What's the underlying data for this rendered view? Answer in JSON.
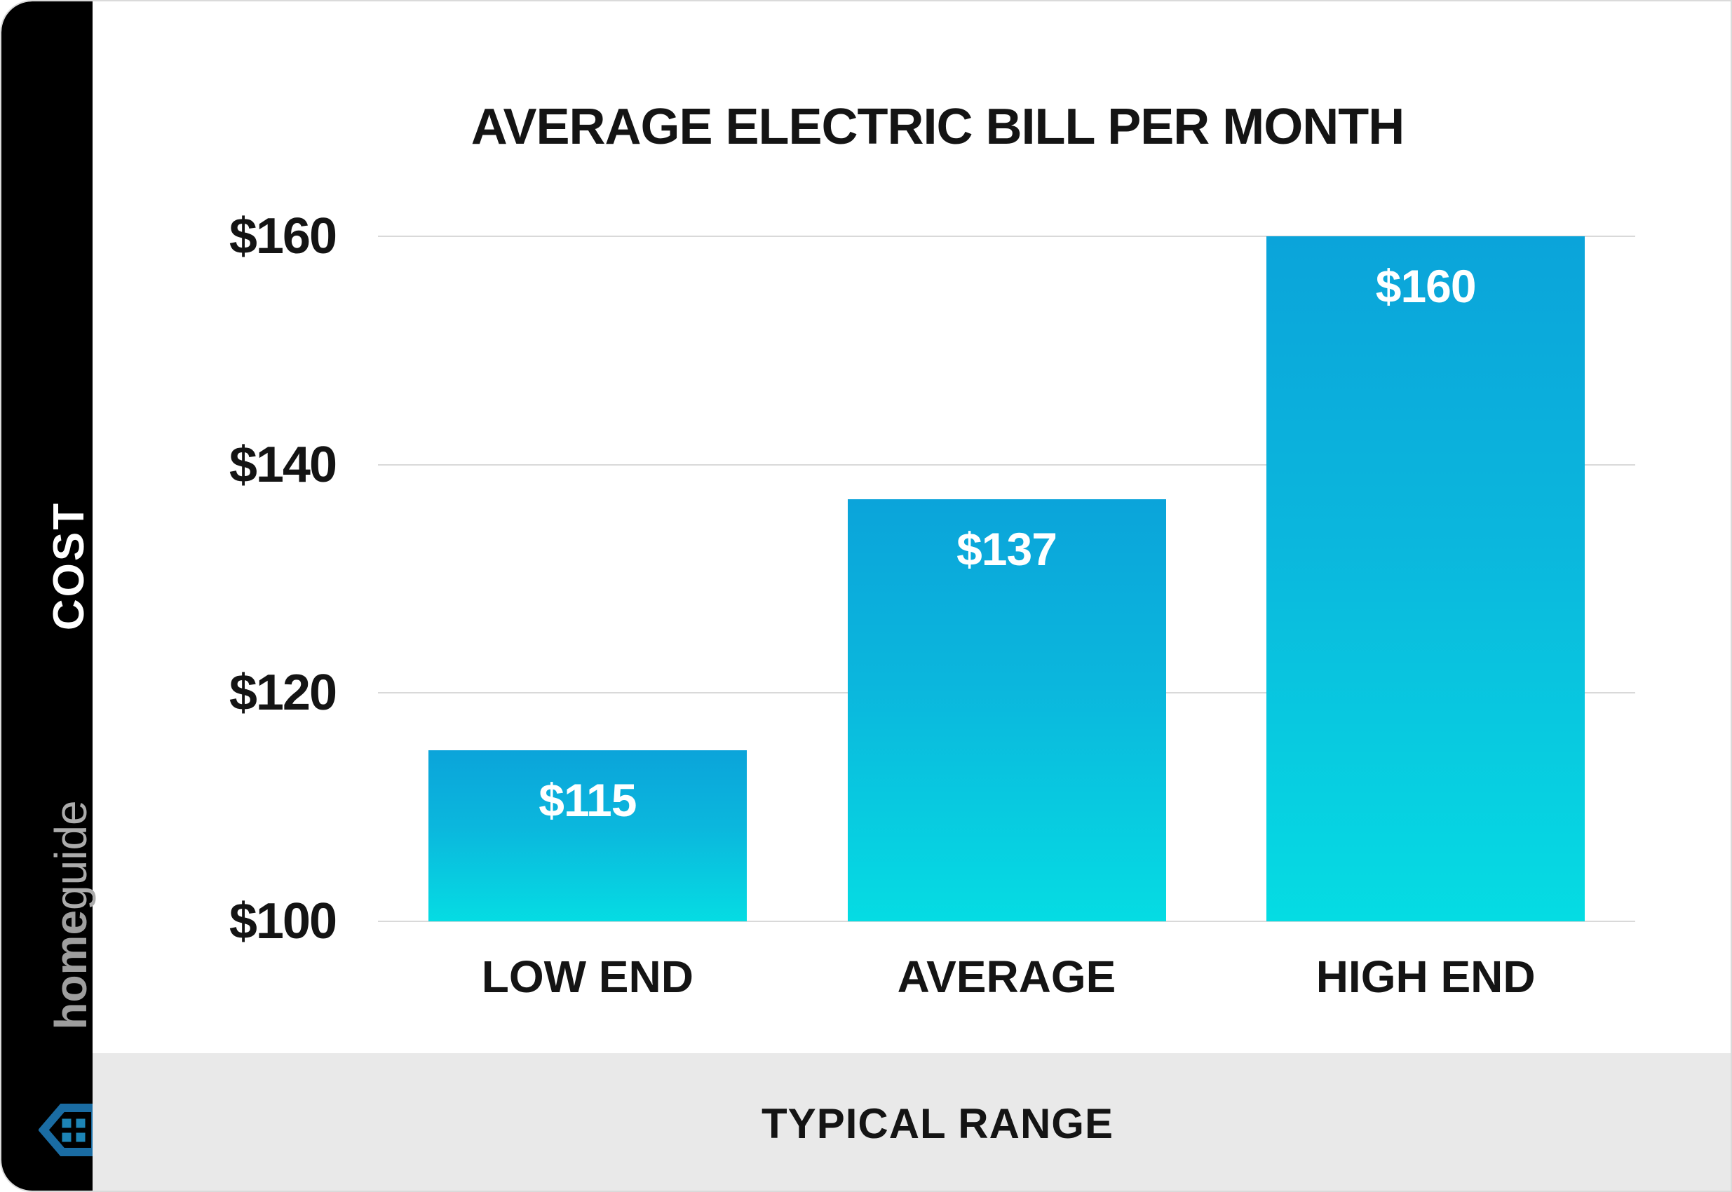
{
  "title": "AVERAGE ELECTRIC BILL PER MONTH",
  "sidebar": {
    "cost_label": "COST",
    "brand": {
      "home": "home",
      "guide": "guide"
    }
  },
  "footer": {
    "label": "TYPICAL RANGE"
  },
  "colors": {
    "bar_gradient_top": "#0ba4da",
    "bar_gradient_bottom": "#05dce3",
    "gridline": "#d9d9d9",
    "footer_band": "#e9e9e9",
    "sidebar_bg": "#000000",
    "brand_gray": "#a7a7a7",
    "house_outline": "#1a6ca3",
    "house_window": "#1d84b5",
    "text": "#141414"
  },
  "chart_data": {
    "type": "bar",
    "title": "AVERAGE ELECTRIC BILL PER MONTH",
    "ylabel": "COST",
    "xlabel": "TYPICAL RANGE",
    "ylim": [
      100,
      160
    ],
    "grid": true,
    "legend": "none",
    "categories": [
      "LOW END",
      "AVERAGE",
      "HIGH END"
    ],
    "values": [
      115,
      137,
      160
    ],
    "yticks": [
      {
        "value": 100,
        "label": "$100"
      },
      {
        "value": 120,
        "label": "$120"
      },
      {
        "value": 140,
        "label": "$140"
      },
      {
        "value": 160,
        "label": "$160"
      }
    ],
    "bars": [
      {
        "category": "LOW END",
        "value": 115,
        "label": "$115"
      },
      {
        "category": "AVERAGE",
        "value": 137,
        "label": "$137"
      },
      {
        "category": "HIGH END",
        "value": 160,
        "label": "$160"
      }
    ]
  }
}
